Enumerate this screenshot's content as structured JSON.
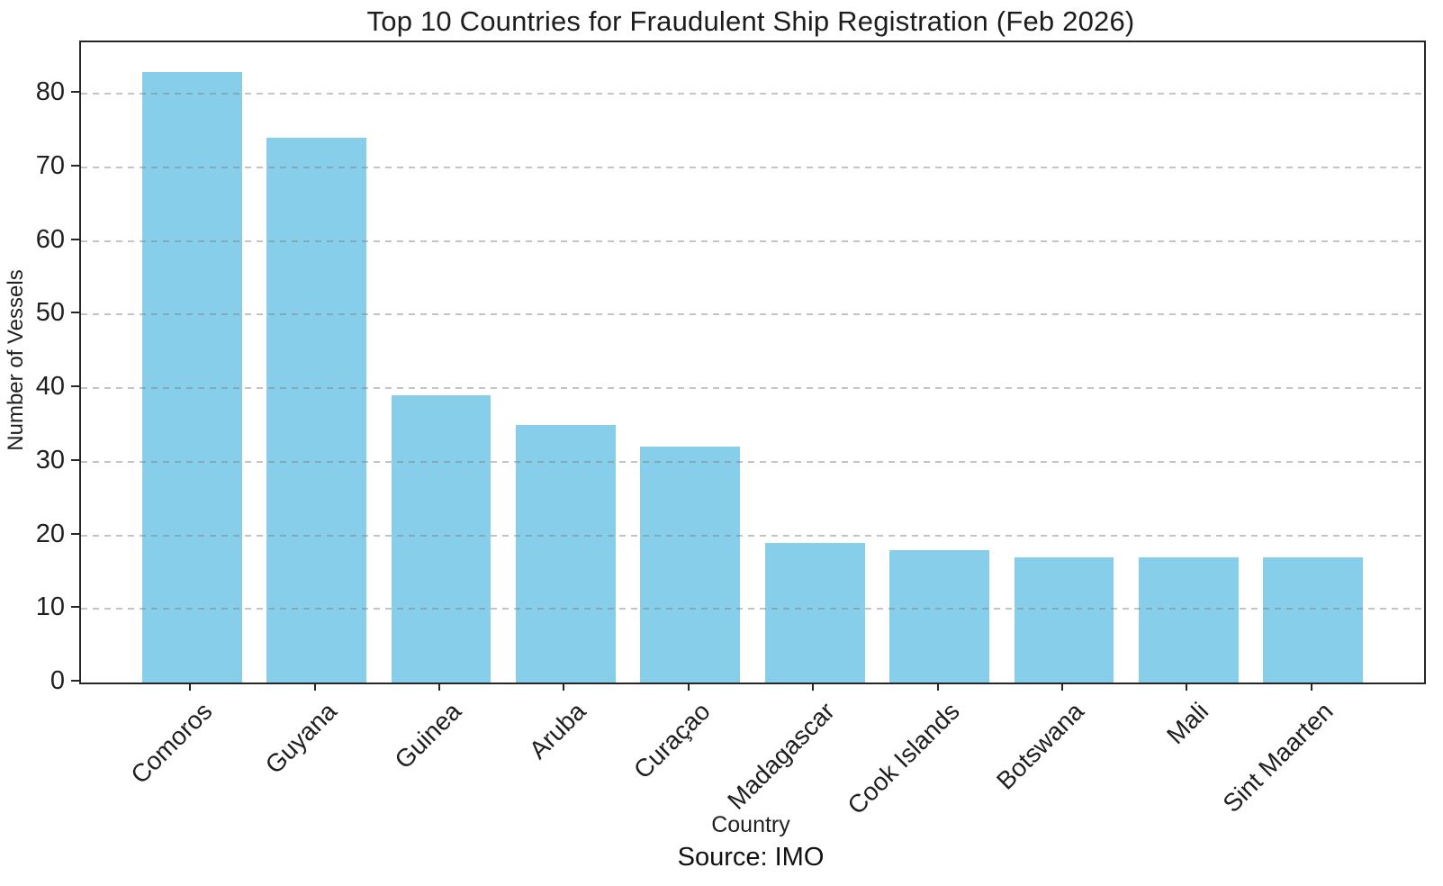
{
  "chart_data": {
    "type": "bar",
    "title": "Top 10 Countries for Fraudulent Ship Registration (Feb 2026)",
    "xlabel": "Country",
    "ylabel": "Number of Vessels",
    "source_note": "Source: IMO",
    "categories": [
      "Comoros",
      "Guyana",
      "Guinea",
      "Aruba",
      "Curaçao",
      "Madagascar",
      "Cook Islands",
      "Botswana",
      "Mali",
      "Sint Maarten"
    ],
    "values": [
      83,
      74,
      39,
      35,
      32,
      19,
      18,
      17,
      17,
      17
    ],
    "yticks": [
      0,
      10,
      20,
      30,
      40,
      50,
      60,
      70,
      80
    ],
    "ylim": [
      0,
      87
    ],
    "bar_color": "#87CEEB",
    "grid": true,
    "grid_style": "dashed",
    "grid_position": "above-bars",
    "legend": "none"
  }
}
